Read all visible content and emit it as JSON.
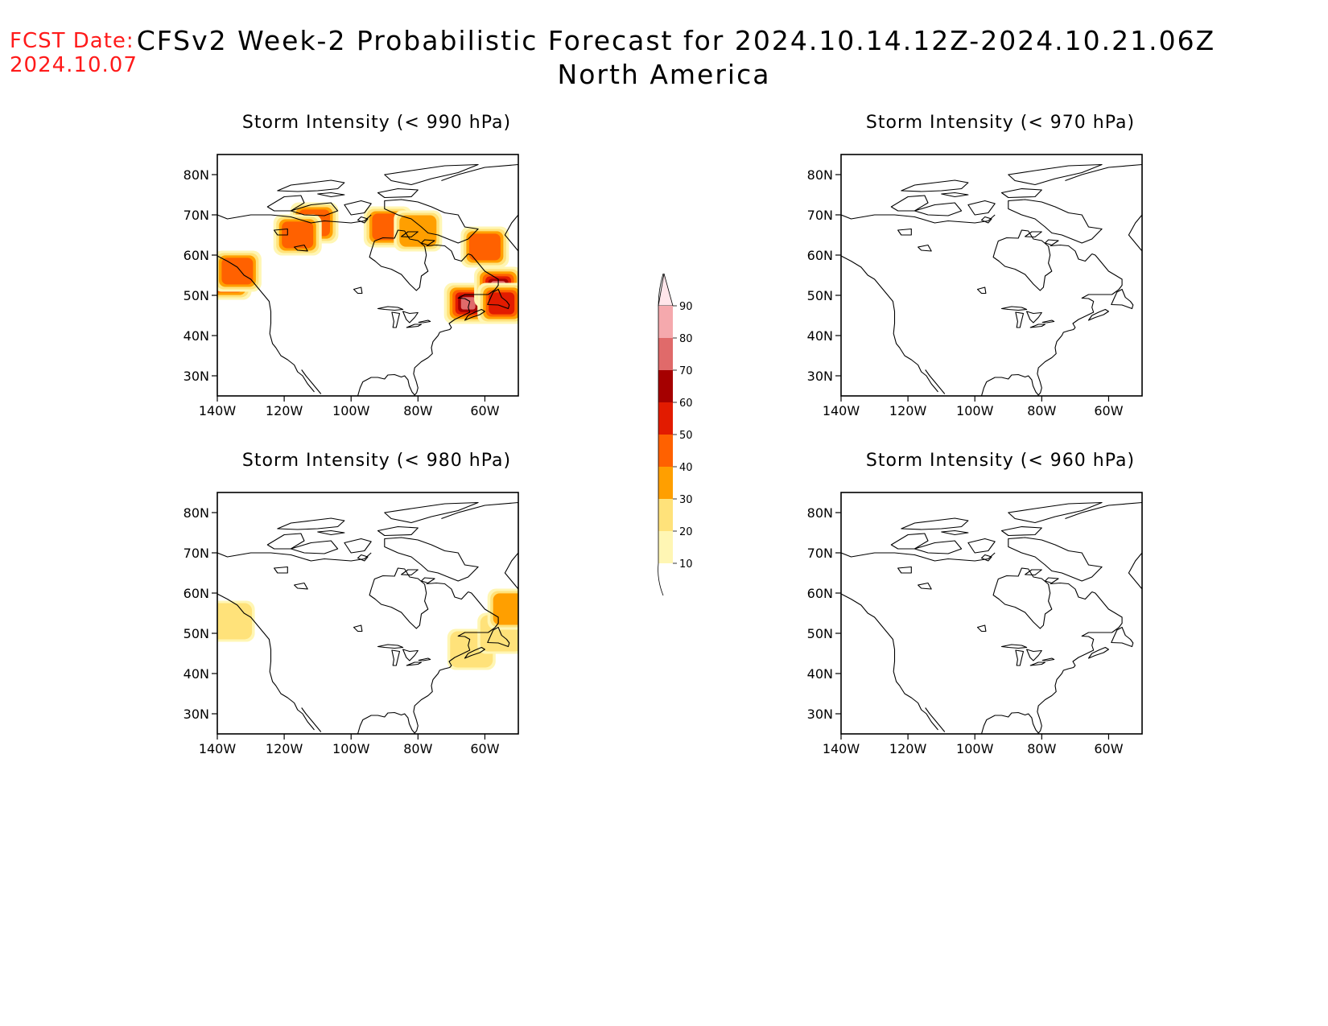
{
  "header": {
    "fcst_label": "FCST Date:",
    "fcst_date": "2024.10.07",
    "title_line1": "CFSv2 Week-2 Probabilistic Forecast for 2024.10.14.12Z-2024.10.21.06Z",
    "title_line2": "North America"
  },
  "axes": {
    "lat_ticks": [
      "80N",
      "70N",
      "60N",
      "50N",
      "40N",
      "30N"
    ],
    "lon_ticks": [
      "140W",
      "120W",
      "100W",
      "80W",
      "60W"
    ]
  },
  "panels": [
    {
      "id": "p990",
      "title": "Storm Intensity (< 990 hPa)",
      "areas": [
        {
          "lon": -137,
          "lat": 54,
          "p": 55
        },
        {
          "lon": -134,
          "lat": 56,
          "p": 40
        },
        {
          "lon": -111,
          "lat": 68,
          "p": 45
        },
        {
          "lon": -116,
          "lat": 65,
          "p": 45
        },
        {
          "lon": -89,
          "lat": 67,
          "p": 40
        },
        {
          "lon": -80,
          "lat": 66,
          "p": 35
        },
        {
          "lon": -60,
          "lat": 62,
          "p": 45
        },
        {
          "lon": -65,
          "lat": 48,
          "p": 75
        },
        {
          "lon": -56,
          "lat": 52,
          "p": 75
        },
        {
          "lon": -55,
          "lat": 48,
          "p": 55
        }
      ]
    },
    {
      "id": "p970",
      "title": "Storm Intensity (< 970 hPa)",
      "areas": []
    },
    {
      "id": "p980",
      "title": "Storm Intensity (< 980 hPa)",
      "areas": [
        {
          "lon": -136,
          "lat": 53,
          "p": 20
        },
        {
          "lon": -64,
          "lat": 46,
          "p": 20
        },
        {
          "lon": -55,
          "lat": 50,
          "p": 20
        },
        {
          "lon": -52,
          "lat": 56,
          "p": 30
        }
      ]
    },
    {
      "id": "p960",
      "title": "Storm Intensity (< 960 hPa)",
      "areas": []
    }
  ],
  "legend": {
    "labels": [
      "10",
      "20",
      "30",
      "40",
      "50",
      "60",
      "70",
      "80",
      "90"
    ],
    "colors": [
      "#fff6b4",
      "#ffe27a",
      "#ff9f00",
      "#ff6100",
      "#e21b00",
      "#a50000",
      "#e06a6a",
      "#f5a9ad",
      "#ffe6ea"
    ]
  }
}
